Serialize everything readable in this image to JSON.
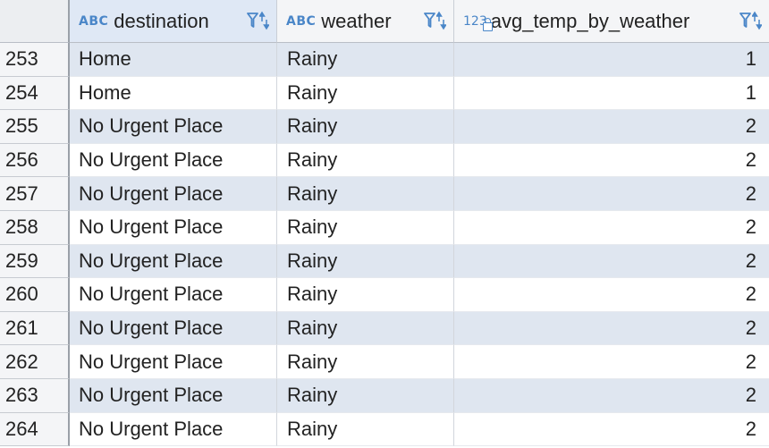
{
  "columns": [
    {
      "type_tag": "ABC",
      "label": "destination"
    },
    {
      "type_tag": "ABC",
      "label": "weather"
    },
    {
      "type_tag": "123",
      "label": "avg_temp_by_weather"
    }
  ],
  "rows": [
    {
      "num": "253",
      "destination": "Home",
      "weather": "Rainy",
      "avg": "1"
    },
    {
      "num": "254",
      "destination": "Home",
      "weather": "Rainy",
      "avg": "1"
    },
    {
      "num": "255",
      "destination": "No Urgent Place",
      "weather": "Rainy",
      "avg": "2"
    },
    {
      "num": "256",
      "destination": "No Urgent Place",
      "weather": "Rainy",
      "avg": "2"
    },
    {
      "num": "257",
      "destination": "No Urgent Place",
      "weather": "Rainy",
      "avg": "2"
    },
    {
      "num": "258",
      "destination": "No Urgent Place",
      "weather": "Rainy",
      "avg": "2"
    },
    {
      "num": "259",
      "destination": "No Urgent Place",
      "weather": "Rainy",
      "avg": "2"
    },
    {
      "num": "260",
      "destination": "No Urgent Place",
      "weather": "Rainy",
      "avg": "2"
    },
    {
      "num": "261",
      "destination": "No Urgent Place",
      "weather": "Rainy",
      "avg": "2"
    },
    {
      "num": "262",
      "destination": "No Urgent Place",
      "weather": "Rainy",
      "avg": "2"
    },
    {
      "num": "263",
      "destination": "No Urgent Place",
      "weather": "Rainy",
      "avg": "2"
    },
    {
      "num": "264",
      "destination": "No Urgent Place",
      "weather": "Rainy",
      "avg": "2"
    }
  ],
  "icons": {
    "column_type_text": "abc-type-icon",
    "column_type_numeric": "numeric-type-icon",
    "read_only": "lock-icon",
    "filter": "filter-icon",
    "sort": "sort-arrows-icon"
  },
  "colors": {
    "accent": "#4a86c8",
    "row_alt": "#dfe6f0",
    "selected_header": "#dfe8f5"
  }
}
